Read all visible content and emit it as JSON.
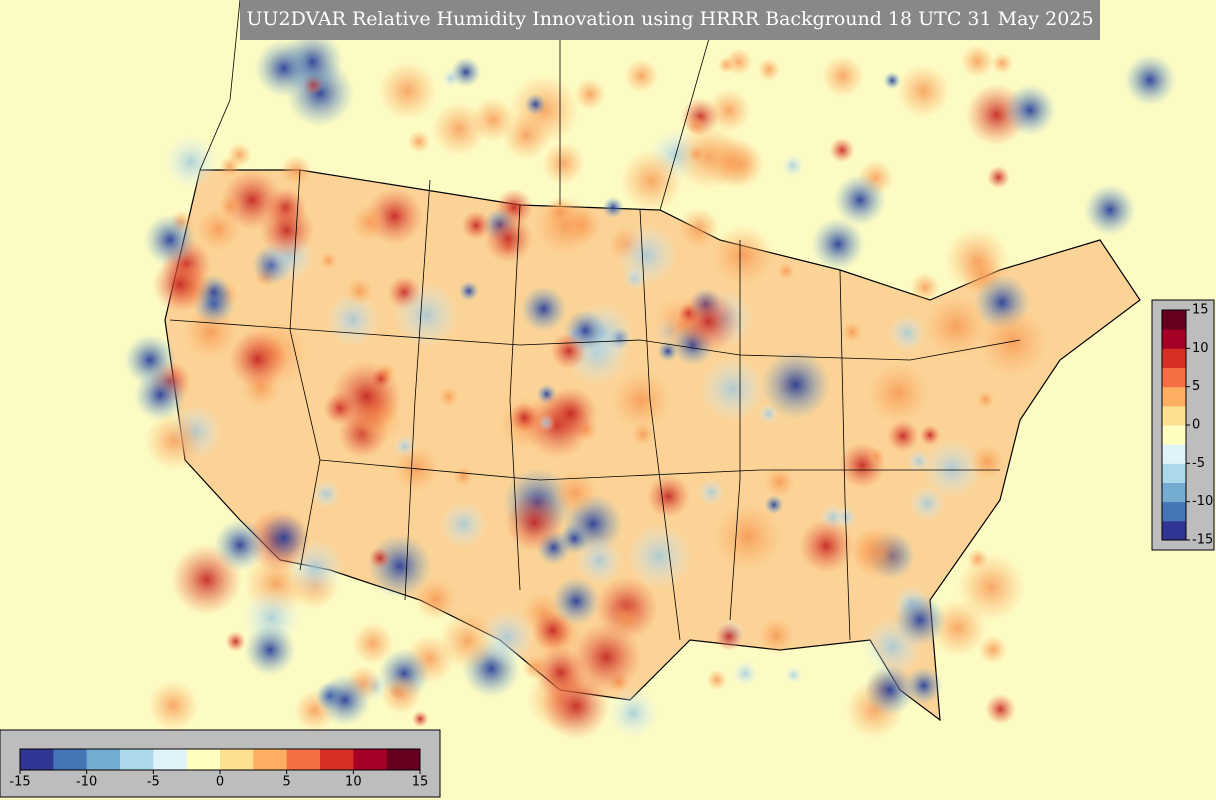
{
  "title": "UU2DVAR Relative Humidity Innovation using HRRR Background 18 UTC 31 May 2025",
  "colormap": [
    "#313695",
    "#4575b4",
    "#74add1",
    "#abd9e9",
    "#e0f3f8",
    "#ffffbf",
    "#fee090",
    "#fdae61",
    "#f46d43",
    "#d73027",
    "#a50026",
    "#67001f"
  ],
  "colorbar_bottom": {
    "range": [
      -15,
      15
    ],
    "ticks": [
      -15,
      -10,
      -5,
      0,
      5,
      10,
      15
    ]
  },
  "colorbar_right": {
    "range": [
      -15,
      15
    ],
    "ticks": [
      -15,
      -10,
      -5,
      0,
      5,
      10,
      15
    ]
  }
}
